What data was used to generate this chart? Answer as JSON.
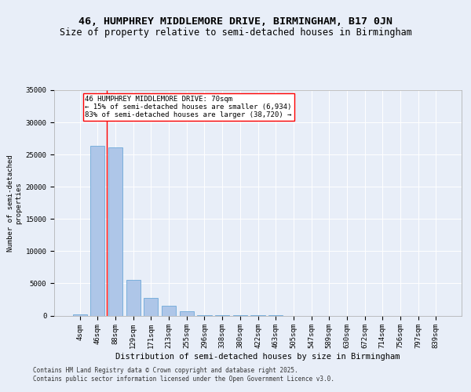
{
  "title1": "46, HUMPHREY MIDDLEMORE DRIVE, BIRMINGHAM, B17 0JN",
  "title2": "Size of property relative to semi-detached houses in Birmingham",
  "xlabel": "Distribution of semi-detached houses by size in Birmingham",
  "ylabel": "Number of semi-detached\nproperties",
  "categories": [
    "4sqm",
    "46sqm",
    "88sqm",
    "129sqm",
    "171sqm",
    "213sqm",
    "255sqm",
    "296sqm",
    "338sqm",
    "380sqm",
    "422sqm",
    "463sqm",
    "505sqm",
    "547sqm",
    "589sqm",
    "630sqm",
    "672sqm",
    "714sqm",
    "756sqm",
    "797sqm",
    "839sqm"
  ],
  "values": [
    200,
    26300,
    26100,
    5500,
    2700,
    1500,
    700,
    120,
    25,
    8,
    3,
    1,
    0,
    0,
    0,
    0,
    0,
    0,
    0,
    0,
    0
  ],
  "bar_color": "#aec6e8",
  "bar_edge_color": "#5a9fd4",
  "vline_x": 1.5,
  "vline_color": "red",
  "annotation_box_text": "46 HUMPHREY MIDDLEMORE DRIVE: 70sqm\n← 15% of semi-detached houses are smaller (6,934)\n83% of semi-detached houses are larger (38,720) →",
  "bg_color": "#e8eef8",
  "plot_bg_color": "#e8eef8",
  "footer_text": "Contains HM Land Registry data © Crown copyright and database right 2025.\nContains public sector information licensed under the Open Government Licence v3.0.",
  "ylim": [
    0,
    35000
  ],
  "yticks": [
    0,
    5000,
    10000,
    15000,
    20000,
    25000,
    30000,
    35000
  ],
  "title1_fontsize": 9.5,
  "title2_fontsize": 8.5,
  "xlabel_fontsize": 7.5,
  "ylabel_fontsize": 6.5,
  "tick_fontsize": 6.5,
  "annotation_fontsize": 6.5,
  "footer_fontsize": 5.5
}
